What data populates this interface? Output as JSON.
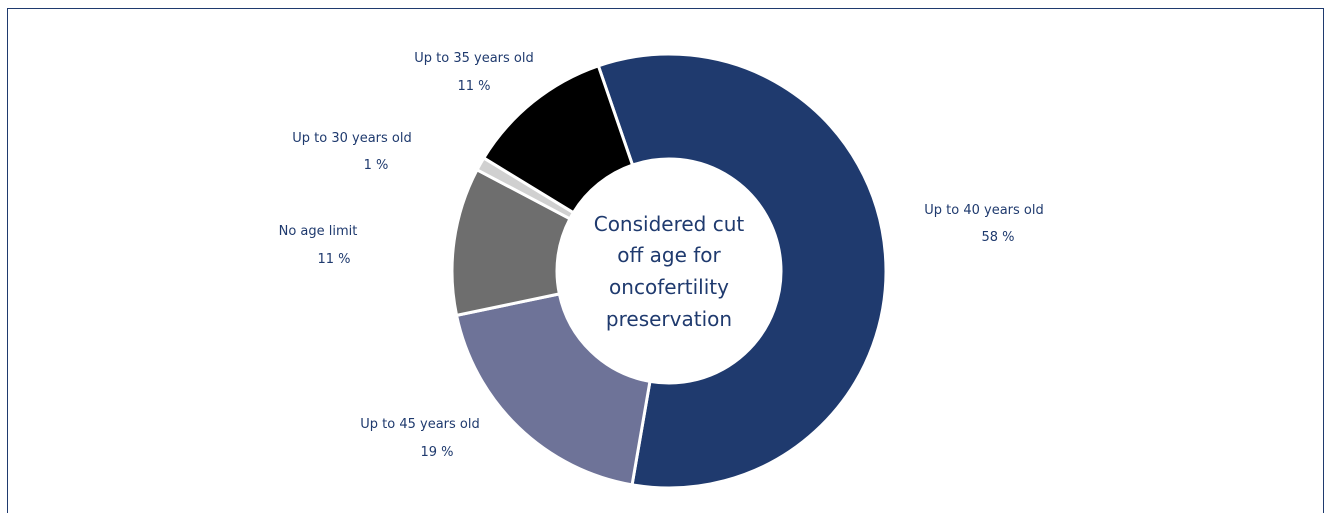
{
  "chart_data": {
    "type": "pie",
    "donut": true,
    "center_text": [
      "Considered cut",
      "off age for",
      "oncofertility",
      "preservation"
    ],
    "slices": [
      {
        "label": "Up to 40 years old",
        "value": 58,
        "value_text": "58 %",
        "color": "#1f3a6e"
      },
      {
        "label": "Up to 45 years old",
        "value": 19,
        "value_text": "19 %",
        "color": "#6e7398"
      },
      {
        "label": "No age limit",
        "value": 11,
        "value_text": "11 %",
        "color": "#6e6e6e"
      },
      {
        "label": "Up to 30 years old",
        "value": 1,
        "value_text": "1 %",
        "color": "#d0d0d0"
      },
      {
        "label": "Up to 35 years old",
        "value": 11,
        "value_text": "11 %",
        "color": "#000000"
      }
    ],
    "text_color": "#1f3a6e"
  }
}
